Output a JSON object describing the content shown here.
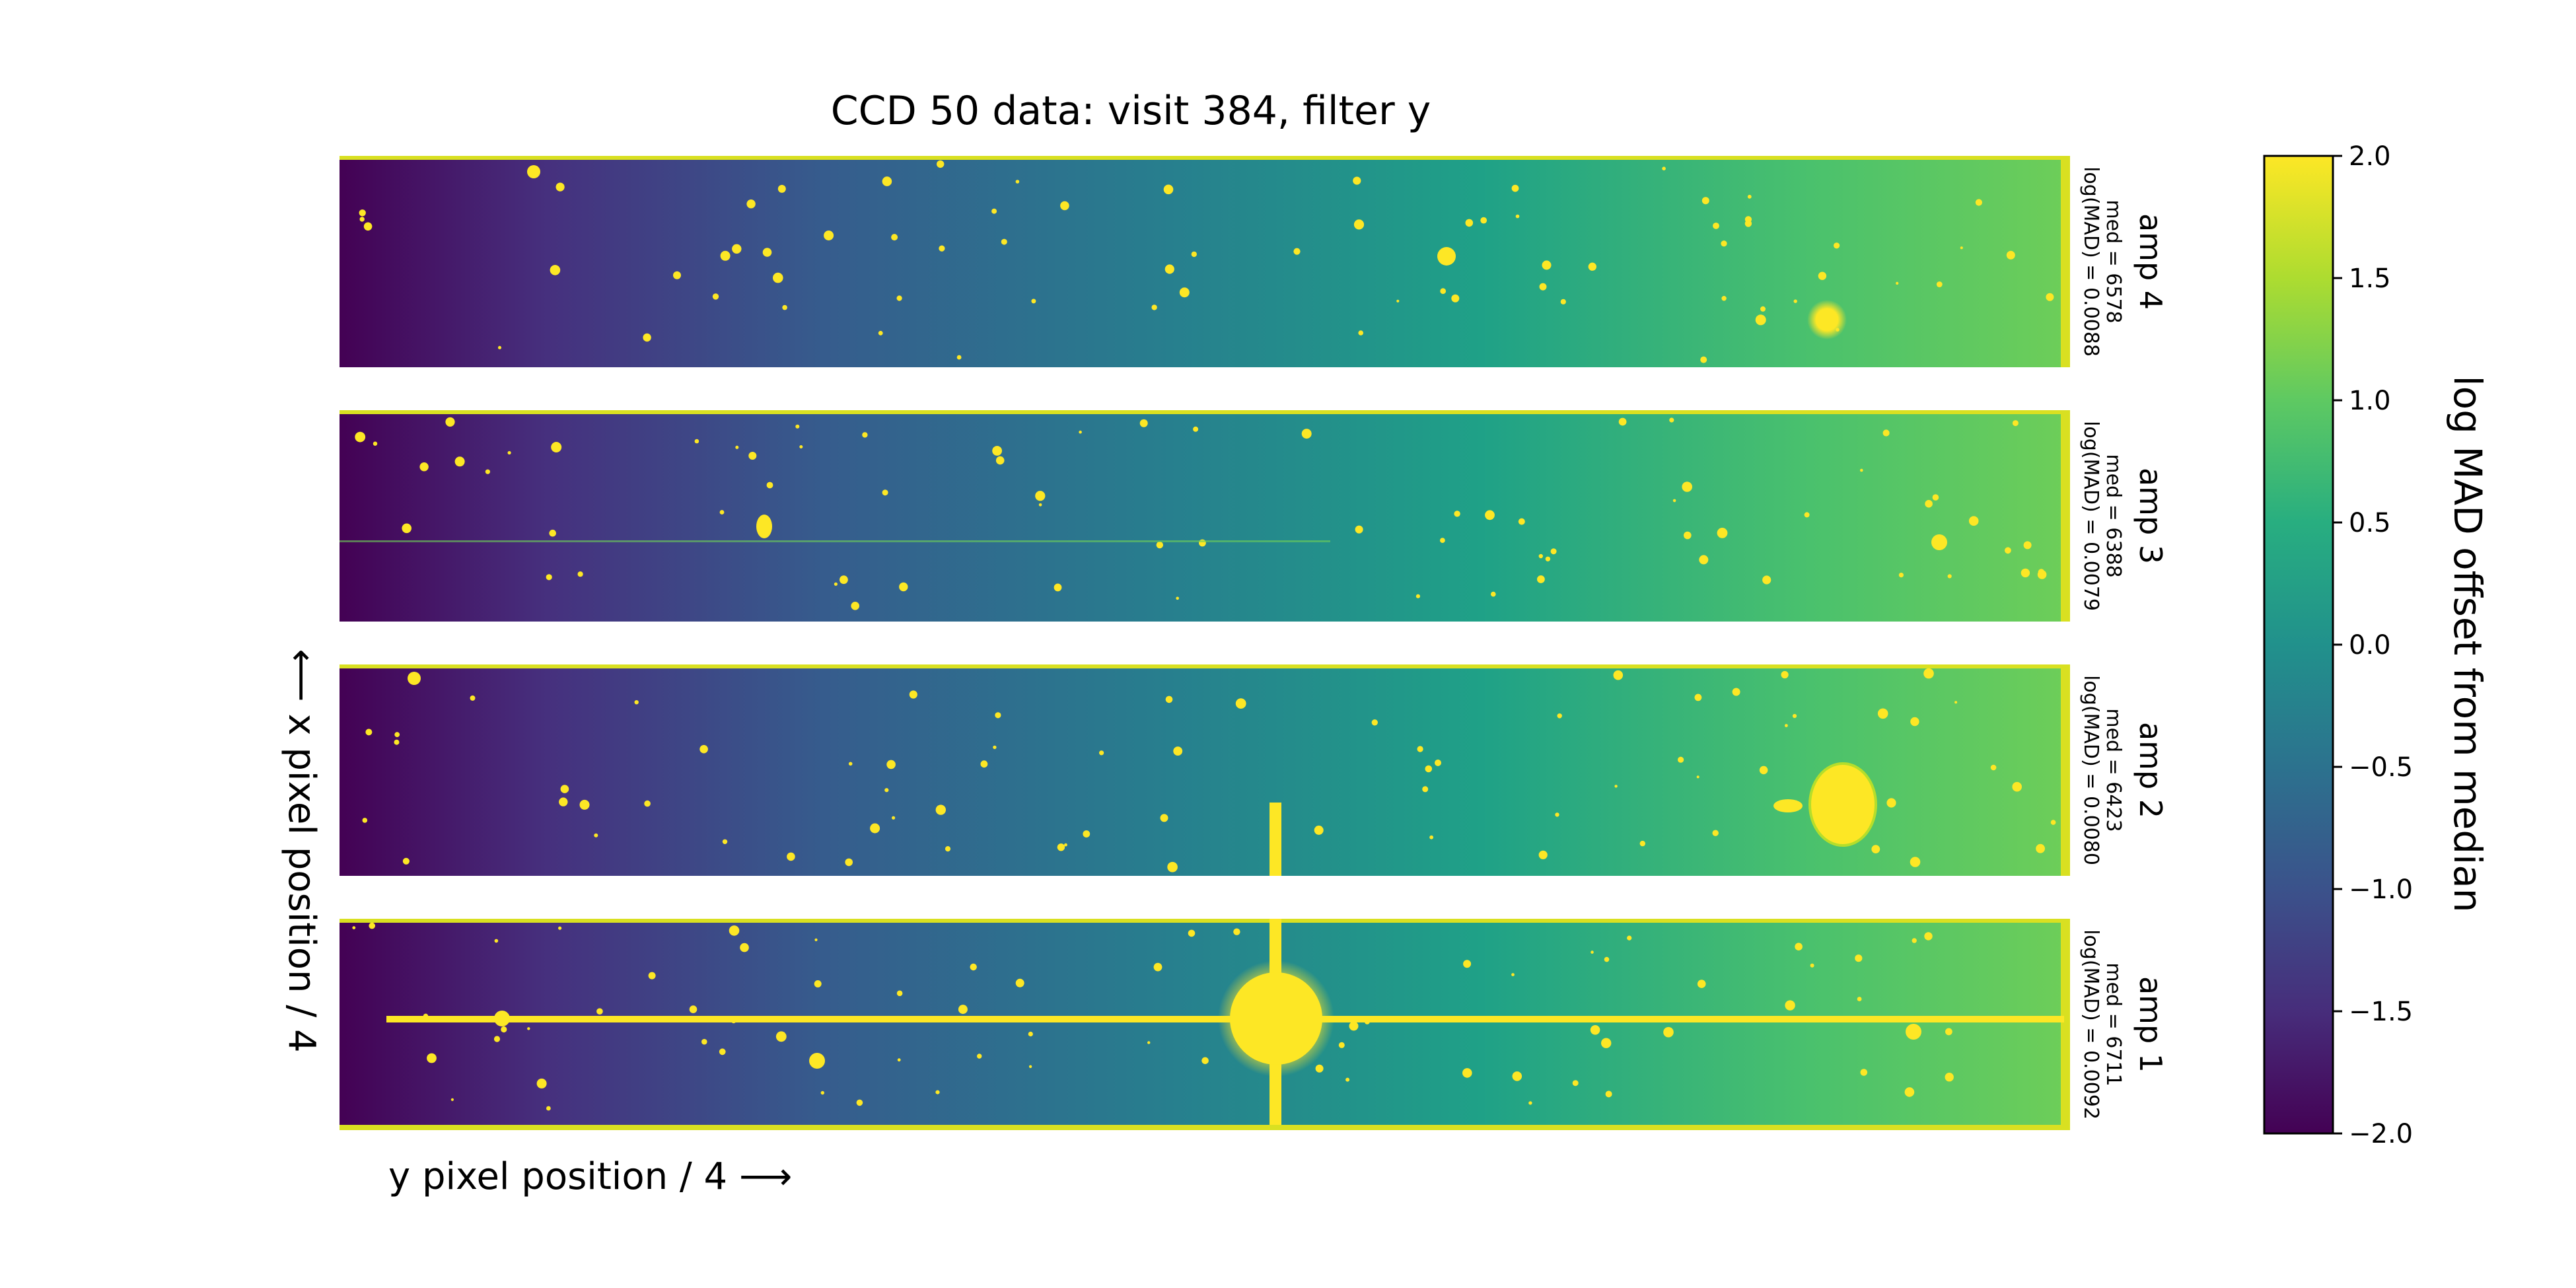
{
  "chart_data": {
    "type": "heatmap",
    "title": "CCD 50 data: visit 384, filter y",
    "xlabel": "y pixel position / 4 ⟶",
    "ylabel": "⟵ x pixel position / 4",
    "colorbar": {
      "label": "log MAD offset from median",
      "range": [
        -2.0,
        2.0
      ],
      "ticks": [
        "2.0",
        "1.5",
        "1.0",
        "0.5",
        "0.0",
        "−0.5",
        "−1.0",
        "−1.5",
        "−2.0"
      ],
      "colormap": "viridis"
    },
    "panels": [
      {
        "amp": "amp 4",
        "med": "med = 6578",
        "logmad": "log(MAD) = 0.0088"
      },
      {
        "amp": "amp 3",
        "med": "med = 6388",
        "logmad": "log(MAD) = 0.0079"
      },
      {
        "amp": "amp 2",
        "med": "med = 6423",
        "logmad": "log(MAD) = 0.0080"
      },
      {
        "amp": "amp 1",
        "med": "med = 6711",
        "logmad": "log(MAD) = 0.0092"
      }
    ],
    "grid": false
  },
  "colors": {
    "viridis_low": "#440154",
    "viridis_mid": "#21918c",
    "viridis_high": "#fde725"
  }
}
